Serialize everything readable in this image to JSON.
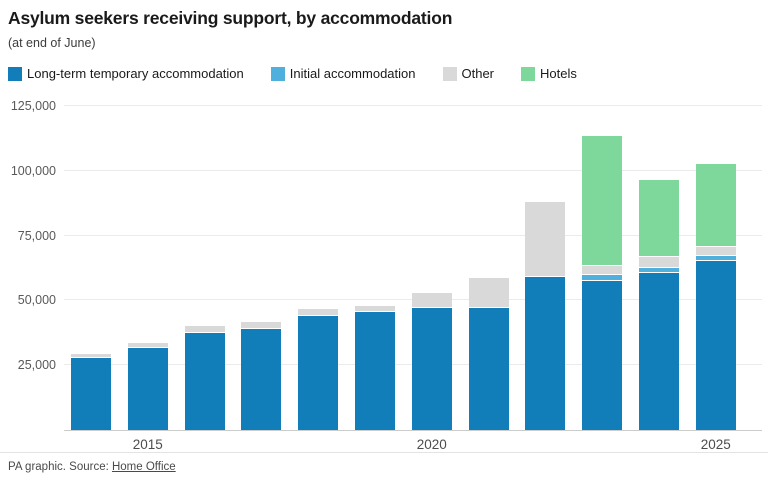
{
  "header": {
    "title": "Asylum seekers receiving support, by accommodation",
    "subtitle": "(at end of June)"
  },
  "chart_data": {
    "type": "bar",
    "stacked": true,
    "title": "Asylum seekers receiving support, by accommodation",
    "subtitle": "(at end of June)",
    "categories": [
      2014,
      2015,
      2016,
      2017,
      2018,
      2019,
      2020,
      2021,
      2022,
      2023,
      2024,
      2025
    ],
    "series": [
      {
        "name": "Long-term temporary accommodation",
        "color": "#117db9",
        "values": [
          28000,
          32000,
          38000,
          39500,
          44500,
          46000,
          47500,
          47500,
          59500,
          58000,
          61000,
          65500
        ]
      },
      {
        "name": "Initial accommodation",
        "color": "#4fb0dd",
        "values": [
          0,
          0,
          0,
          0,
          0,
          0,
          0,
          0,
          0,
          2000,
          2000,
          2000
        ]
      },
      {
        "name": "Other",
        "color": "#d9d9d9",
        "values": [
          1500,
          1500,
          2000,
          2000,
          2000,
          2000,
          5500,
          11000,
          28500,
          3500,
          4000,
          3500
        ]
      },
      {
        "name": "Hotels",
        "color": "#7fd89b",
        "values": [
          0,
          0,
          0,
          0,
          0,
          0,
          0,
          0,
          0,
          50000,
          29500,
          31500
        ]
      }
    ],
    "xlabel": "",
    "ylabel": "",
    "ylim": [
      0,
      125000
    ],
    "yticks": [
      25000,
      50000,
      75000,
      100000,
      125000
    ],
    "ytick_labels": [
      "25,000",
      "50,000",
      "75,000",
      "100,000",
      "125,000"
    ],
    "xticks": [
      2015,
      2020,
      2025
    ],
    "grid": "horizontal",
    "legend_position": "top",
    "values_note": "Values estimated from bar heights; no data labels shown in graphic"
  },
  "footer": {
    "credit_prefix": "PA graphic. Source: ",
    "source_link": "Home Office"
  }
}
